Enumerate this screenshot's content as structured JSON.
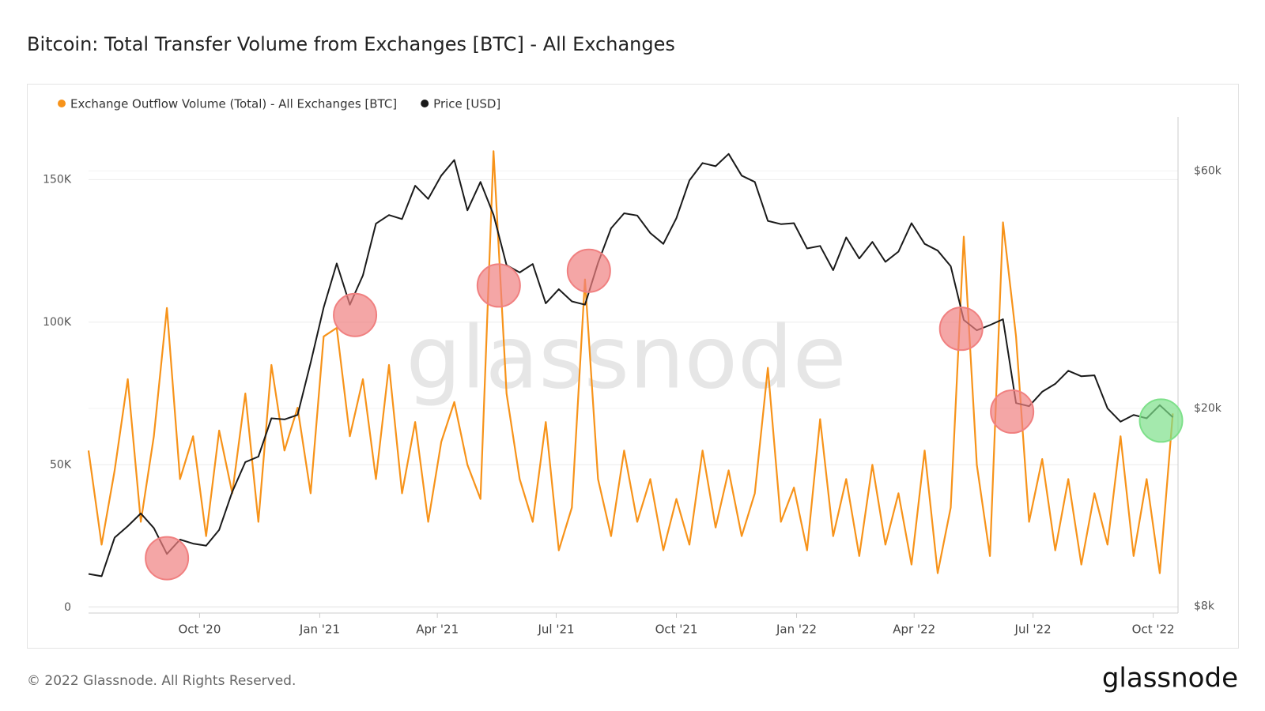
{
  "chart_data": {
    "type": "line",
    "title": "Bitcoin: Total Transfer Volume from Exchanges [BTC] - All Exchanges",
    "watermark": "glassnode",
    "footer": "© 2022 Glassnode. All Rights Reserved.",
    "logo": "glassnode",
    "x": [
      "2020-07-08",
      "2020-07-18",
      "2020-07-28",
      "2020-08-07",
      "2020-08-17",
      "2020-08-27",
      "2020-09-06",
      "2020-09-16",
      "2020-09-26",
      "2020-10-06",
      "2020-10-16",
      "2020-10-26",
      "2020-11-05",
      "2020-11-15",
      "2020-11-25",
      "2020-12-05",
      "2020-12-15",
      "2020-12-25",
      "2021-01-04",
      "2021-01-14",
      "2021-01-24",
      "2021-02-03",
      "2021-02-13",
      "2021-02-23",
      "2021-03-05",
      "2021-03-15",
      "2021-03-25",
      "2021-04-04",
      "2021-04-14",
      "2021-04-24",
      "2021-05-04",
      "2021-05-14",
      "2021-05-24",
      "2021-06-03",
      "2021-06-13",
      "2021-06-23",
      "2021-07-03",
      "2021-07-13",
      "2021-07-23",
      "2021-08-02",
      "2021-08-12",
      "2021-08-22",
      "2021-09-01",
      "2021-09-11",
      "2021-09-21",
      "2021-10-01",
      "2021-10-11",
      "2021-10-21",
      "2021-10-31",
      "2021-11-10",
      "2021-11-20",
      "2021-11-30",
      "2021-12-10",
      "2021-12-20",
      "2021-12-30",
      "2022-01-09",
      "2022-01-19",
      "2022-01-29",
      "2022-02-08",
      "2022-02-18",
      "2022-02-28",
      "2022-03-10",
      "2022-03-20",
      "2022-03-30",
      "2022-04-09",
      "2022-04-19",
      "2022-04-29",
      "2022-05-09",
      "2022-05-19",
      "2022-05-29",
      "2022-06-08",
      "2022-06-18",
      "2022-06-28",
      "2022-07-08",
      "2022-07-18",
      "2022-07-28",
      "2022-08-07",
      "2022-08-17",
      "2022-08-27",
      "2022-09-06",
      "2022-09-16",
      "2022-09-26",
      "2022-10-06",
      "2022-10-16"
    ],
    "series": [
      {
        "name": "Exchange Outflow Volume (Total) - All Exchanges [BTC]",
        "color": "#f7931a",
        "axis": "y",
        "values": [
          55000,
          22000,
          48000,
          80000,
          30000,
          60000,
          105000,
          45000,
          60000,
          25000,
          62000,
          40000,
          75000,
          30000,
          85000,
          55000,
          70000,
          40000,
          95000,
          98000,
          60000,
          80000,
          45000,
          85000,
          40000,
          65000,
          30000,
          58000,
          72000,
          50000,
          38000,
          160000,
          75000,
          45000,
          30000,
          65000,
          20000,
          35000,
          115000,
          45000,
          25000,
          55000,
          30000,
          45000,
          20000,
          38000,
          22000,
          55000,
          28000,
          48000,
          25000,
          40000,
          84000,
          30000,
          42000,
          20000,
          66000,
          25000,
          45000,
          18000,
          50000,
          22000,
          40000,
          15000,
          55000,
          12000,
          35000,
          130000,
          50000,
          18000,
          135000,
          95000,
          30000,
          52000,
          20000,
          45000,
          15000,
          40000,
          22000,
          60000,
          18000,
          45000,
          12000,
          68000
        ]
      },
      {
        "name": "Price [USD]",
        "color": "#1a1a1a",
        "axis": "y2",
        "values": [
          9300,
          9200,
          11000,
          11600,
          12300,
          11500,
          10200,
          10900,
          10700,
          10600,
          11400,
          13600,
          15600,
          16000,
          19100,
          19000,
          19400,
          24700,
          31900,
          39100,
          32300,
          37000,
          47000,
          48900,
          48000,
          56000,
          52700,
          58700,
          63100,
          50000,
          57000,
          49000,
          38800,
          37500,
          39000,
          32500,
          34700,
          32800,
          32300,
          39200,
          46000,
          49300,
          48800,
          45000,
          42800,
          48200,
          57400,
          62200,
          61300,
          64900,
          58700,
          57000,
          47600,
          46900,
          47100,
          41900,
          42400,
          37900,
          44100,
          40000,
          43200,
          39400,
          41300,
          47100,
          42800,
          41500,
          38600,
          30100,
          28700,
          29400,
          30200,
          20500,
          20200,
          21600,
          22400,
          23800,
          23200,
          23300,
          20000,
          18800,
          19400,
          19100,
          20300,
          19200
        ]
      }
    ],
    "highlights": [
      {
        "x": "2020-09-06",
        "y": 10000,
        "color": "#f08080"
      },
      {
        "x": "2021-01-28",
        "y": 30800,
        "color": "#f08080"
      },
      {
        "x": "2021-05-18",
        "y": 35300,
        "color": "#f08080"
      },
      {
        "x": "2021-07-26",
        "y": 37800,
        "color": "#f08080"
      },
      {
        "x": "2022-05-07",
        "y": 28900,
        "color": "#f08080"
      },
      {
        "x": "2022-06-15",
        "y": 19700,
        "color": "#f08080"
      },
      {
        "x": "2022-10-07",
        "y": 18900,
        "color": "#7ee08a"
      }
    ],
    "xlim": [
      "2020-07-08",
      "2022-10-20"
    ],
    "xticks": [
      {
        "value": "2020-10-01",
        "label": "Oct '20"
      },
      {
        "value": "2021-01-01",
        "label": "Jan '21"
      },
      {
        "value": "2021-04-01",
        "label": "Apr '21"
      },
      {
        "value": "2021-07-01",
        "label": "Jul '21"
      },
      {
        "value": "2021-10-01",
        "label": "Oct '21"
      },
      {
        "value": "2022-01-01",
        "label": "Jan '22"
      },
      {
        "value": "2022-04-01",
        "label": "Apr '22"
      },
      {
        "value": "2022-07-01",
        "label": "Jul '22"
      },
      {
        "value": "2022-10-01",
        "label": "Oct '22"
      }
    ],
    "ylim": [
      -2000,
      172000
    ],
    "yticks": [
      0,
      {
        "value": 50000,
        "label": "50K"
      },
      {
        "value": 100000,
        "label": "100K"
      },
      {
        "value": 150000,
        "label": "150K"
      }
    ],
    "y2lim": [
      7760,
      77000
    ],
    "y2ticks": [
      {
        "value": 8000,
        "label": "$8k"
      },
      {
        "value": 20000,
        "label": "$20k"
      },
      {
        "value": 60000,
        "label": "$60k"
      }
    ],
    "y2log": true,
    "grid": true
  }
}
